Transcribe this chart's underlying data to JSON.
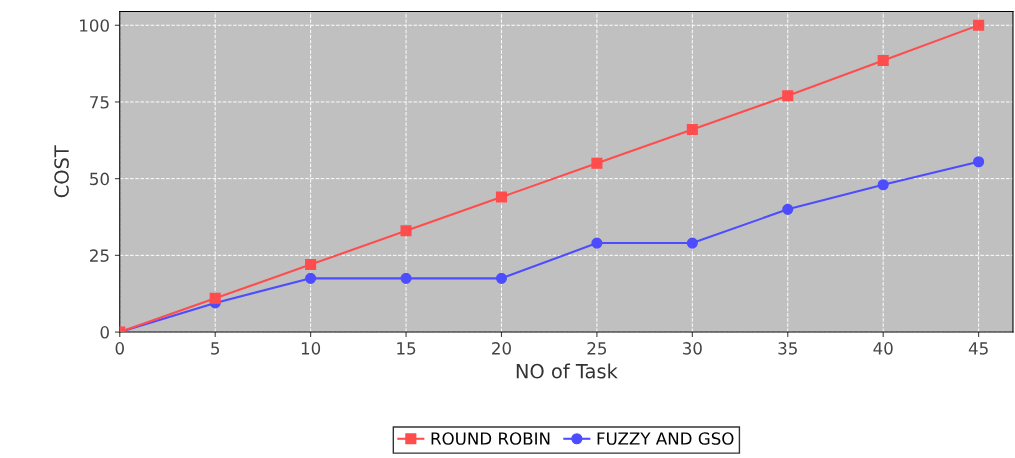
{
  "chart_data": {
    "type": "line",
    "xlabel": "NO of Task",
    "ylabel": "COST",
    "x": [
      0,
      5,
      10,
      15,
      20,
      25,
      30,
      35,
      40,
      45
    ],
    "series": [
      {
        "name": "ROUND ROBIN",
        "color": "#ff4d4d",
        "marker": "square",
        "values": [
          0,
          11,
          22,
          33,
          44,
          55,
          66,
          77,
          88.5,
          100
        ]
      },
      {
        "name": "FUZZY AND GSO",
        "color": "#4d4dff",
        "marker": "circle",
        "values": [
          0,
          9.5,
          17.5,
          17.5,
          17.5,
          29,
          29,
          40,
          48,
          55.5
        ]
      }
    ],
    "xlim": [
      0,
      46.8
    ],
    "xticks": [
      0,
      5,
      10,
      15,
      20,
      25,
      30,
      35,
      40,
      45
    ],
    "ylim": [
      0,
      104.5
    ],
    "yticks": [
      0,
      25,
      50,
      75,
      100
    ],
    "grid": true,
    "legend": "bottom",
    "line_style": "solid"
  }
}
